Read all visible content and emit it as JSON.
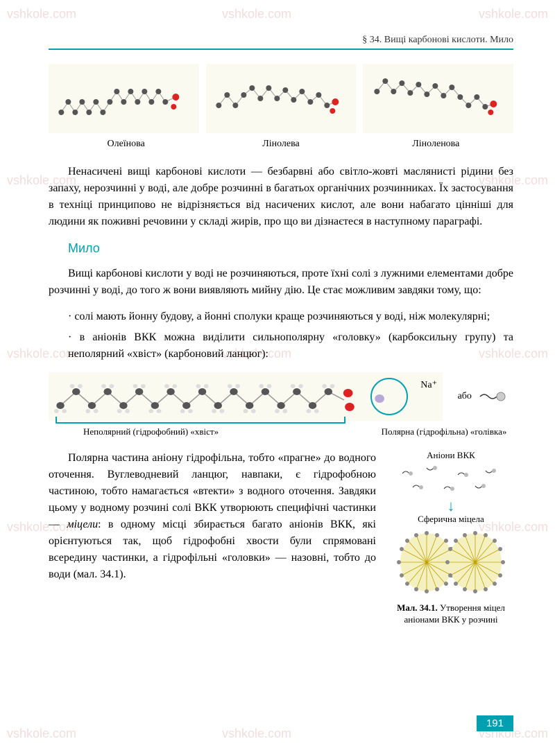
{
  "header": {
    "text": "§ 34. Вищі карбонові кислоти. Мило",
    "rule_color": "#00a0b0"
  },
  "watermark": "vshkole.com",
  "molecules": {
    "bg": "#fafaf0",
    "labels": [
      "Олеїнова",
      "Лінолева",
      "Ліноленова"
    ],
    "atom_colors": {
      "carbon": "#555555",
      "hydrogen": "#dddddd",
      "oxygen": "#dd2222"
    }
  },
  "para1": "Ненасичені вищі карбонові кислоти — безбарвні або світло-жовті маслянисті рідини без запаху, нерозчинні у воді, але добре розчинні в багатьох органічних розчинниках. Їх застосування в техніці принципово не відрізняється від насичених кислот, але вони набагато цінніші для людини як поживні речовини у складі жирів, про що ви дізнаєтеся в наступному параграфі.",
  "section": "Мило",
  "para2": "Вищі карбонові кислоти у воді не розчиняються, проте їхні солі з лужними елементами добре розчинні у воді, до того ж вони виявляють мийну дію. Це стає можливим завдяки тому, що:",
  "bullets": [
    "· солі мають йонну будову, а йонні сполуки краще розчиняються у воді, ніж молекулярні;",
    "· в аніонів ВКК можна виділити сильнополярну «головку» (карбоксильну групу) та неполярний «хвіст» (карбоновий ланцюг):"
  ],
  "soap_diagram": {
    "na": "Na⁺",
    "or": "або",
    "nonpolar_label": "Неполярний (гідрофобний) «хвіст»",
    "polar_label": "Полярна (гідрофільна) «голівка»",
    "circle_color": "#00a0b0",
    "bracket_color": "#00a0b0"
  },
  "para3_html": "Полярна частина аніону гідрофільна, тобто «прагне» до водного оточення. Вуглеводневий ланцюг, навпаки, є гідрофобною частиною, тобто намагається «втекти» з водного оточення. Завдяки цьому у водному розчині солі ВКК утворюють специфічні частинки — <i>міцели</i>: в одному місці збирається багато аніонів ВКК, які орієнтуються так, щоб гідрофобні хвости були спрямовані всередину частинки, а гідрофільні «головки» — назовні, тобто до води (мал. 34.1).",
  "figure": {
    "anions_label": "Аніони ВКК",
    "micelle_label": "Сферична міцела",
    "caption_bold": "Мал. 34.1.",
    "caption_rest": " Утворення міцел аніонами ВКК у розчині",
    "micelle_fill": "#e8d000",
    "micelle_head": "#888888"
  },
  "page_number": "191",
  "colors": {
    "accent": "#00a0b0",
    "text": "#000000",
    "bg": "#ffffff"
  }
}
